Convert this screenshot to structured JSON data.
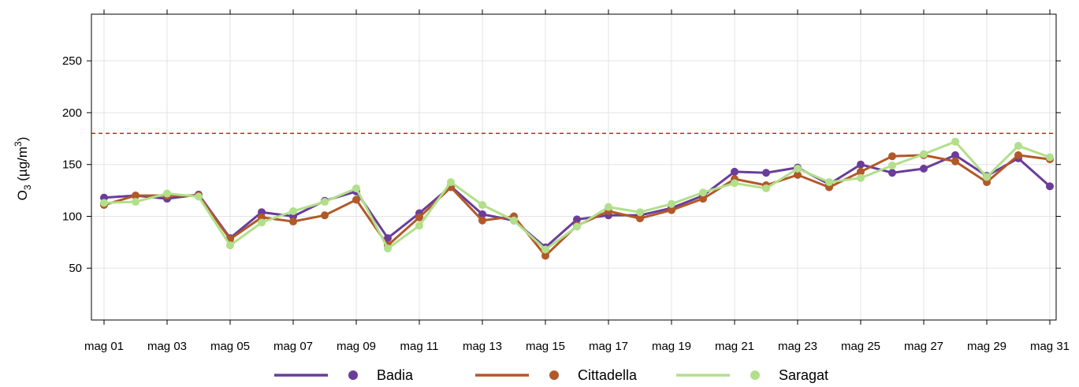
{
  "chart_data": {
    "type": "line",
    "ylabel": {
      "base": "O",
      "sub": "3",
      "unit_open": " (µg/m",
      "sup": "3",
      "unit_close": ")"
    },
    "ylim": [
      0,
      295
    ],
    "yticks": [
      50,
      100,
      150,
      200,
      250
    ],
    "xlim": [
      0.6,
      31.2
    ],
    "xtick_days": [
      1,
      3,
      5,
      7,
      9,
      11,
      13,
      15,
      17,
      19,
      21,
      23,
      25,
      27,
      29,
      31
    ],
    "xtick_labels": [
      "mag 01",
      "mag 03",
      "mag 05",
      "mag 07",
      "mag 09",
      "mag 11",
      "mag 13",
      "mag 15",
      "mag 17",
      "mag 19",
      "mag 21",
      "mag 23",
      "mag 25",
      "mag 27",
      "mag 29",
      "mag 31"
    ],
    "grid": true,
    "legend_position": "bottom",
    "threshold": {
      "value": 180,
      "color": "#e31a1c",
      "style": "dashed"
    },
    "x": [
      1,
      2,
      3,
      4,
      5,
      6,
      7,
      8,
      9,
      10,
      11,
      12,
      13,
      14,
      15,
      16,
      17,
      18,
      19,
      20,
      21,
      22,
      23,
      24,
      25,
      26,
      27,
      28,
      29,
      30,
      31
    ],
    "series": [
      {
        "name": "Badia",
        "color": "#6a3d9a",
        "values": [
          118,
          120,
          117,
          121,
          79,
          104,
          100,
          115,
          124,
          79,
          103,
          129,
          102,
          96,
          70,
          97,
          101,
          101,
          108,
          120,
          143,
          142,
          147,
          131,
          150,
          142,
          146,
          159,
          139,
          156,
          129
        ]
      },
      {
        "name": "Cittadella",
        "color": "#b15928",
        "values": [
          111,
          120,
          120,
          120,
          78,
          99,
          95,
          101,
          116,
          72,
          99,
          128,
          96,
          100,
          62,
          91,
          105,
          98,
          106,
          117,
          136,
          130,
          140,
          128,
          143,
          158,
          159,
          153,
          133,
          159,
          155
        ]
      },
      {
        "name": "Saragat",
        "color": "#b2df8a",
        "values": [
          113,
          114,
          122,
          119,
          72,
          94,
          105,
          114,
          127,
          69,
          91,
          133,
          111,
          96,
          68,
          90,
          109,
          104,
          112,
          123,
          132,
          127,
          146,
          133,
          137,
          149,
          160,
          172,
          138,
          168,
          157
        ]
      }
    ]
  }
}
